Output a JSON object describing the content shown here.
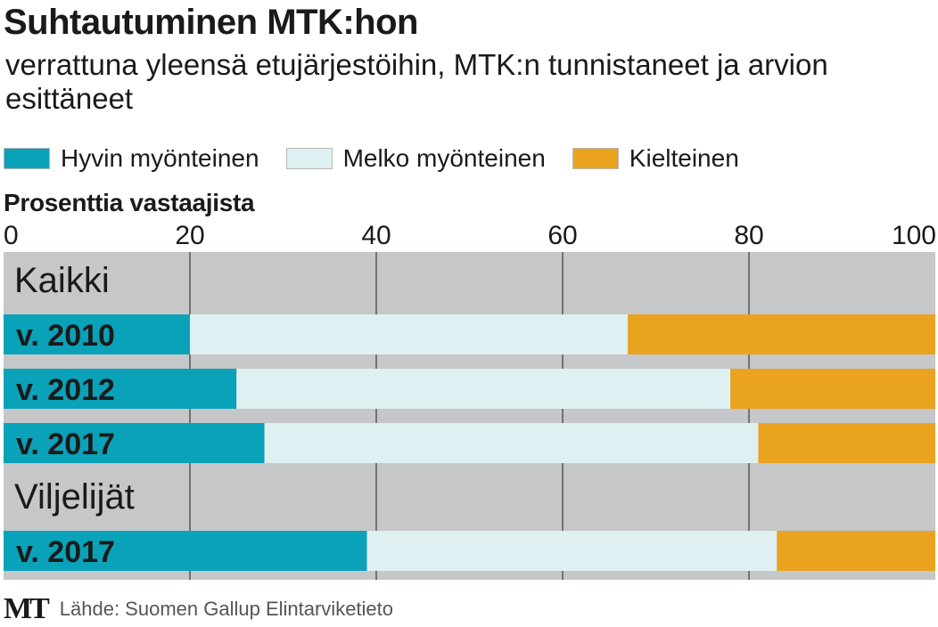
{
  "chart_data": {
    "type": "bar",
    "orientation": "horizontal",
    "stacked": true,
    "title": "Suhtautuminen MTK:hon",
    "subtitle": "verrattuna yleensä etujärjestöihin, MTK:n tunnistaneet ja arvion esittäneet",
    "xlabel": "Prosenttia vastaajista",
    "xlim": [
      0,
      100
    ],
    "xticks": [
      "0",
      "20",
      "40",
      "60",
      "80",
      "100"
    ],
    "groups": [
      {
        "label": "Kaikki",
        "rows": [
          {
            "label": "v. 2010",
            "values": [
              20,
              47,
              33
            ]
          },
          {
            "label": "v. 2012",
            "values": [
              25,
              53,
              22
            ]
          },
          {
            "label": "v. 2017",
            "values": [
              28,
              53,
              19
            ]
          }
        ]
      },
      {
        "label": "Viljelijät",
        "rows": [
          {
            "label": "v. 2017",
            "values": [
              39,
              44,
              17
            ]
          }
        ]
      }
    ],
    "series": [
      {
        "name": "Hyvin myönteinen",
        "color": "#0aa2b8"
      },
      {
        "name": "Melko myönteinen",
        "color": "#dff0f2"
      },
      {
        "name": "Kielteinen",
        "color": "#eaa31f"
      }
    ],
    "background_color": "#c6c7c9",
    "grid": true
  },
  "footer": {
    "logo": "MT",
    "source": "Lähde: Suomen Gallup Elintarviketieto"
  }
}
